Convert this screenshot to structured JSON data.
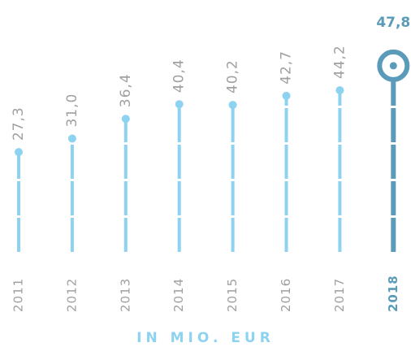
{
  "chart_data": {
    "type": "lollipop",
    "categories": [
      "2011",
      "2012",
      "2013",
      "2014",
      "2015",
      "2016",
      "2017",
      "2018"
    ],
    "values": [
      27.3,
      31.0,
      36.4,
      40.4,
      40.2,
      42.7,
      44.2,
      47.8
    ],
    "value_labels": [
      "27,3",
      "31,0",
      "36,4",
      "40,4",
      "40,2",
      "42,7",
      "44,2",
      "47,8"
    ],
    "colors": [
      "#8dd3f1",
      "#8dd3f1",
      "#8dd3f1",
      "#8dd3f1",
      "#8dd3f1",
      "#8dd3f1",
      "#8dd3f1",
      "#5b9bb9"
    ],
    "x_label": "IN MIO. EUR"
  }
}
